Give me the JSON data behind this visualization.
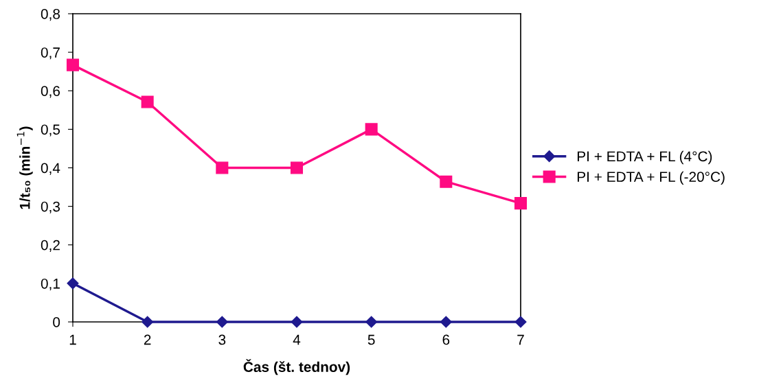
{
  "chart_data": {
    "type": "line",
    "xlabel": "Čas (št. tednov)",
    "ylabel": "1/t₅₀ (min$^{−1}$)",
    "x": [
      1,
      2,
      3,
      4,
      5,
      6,
      7
    ],
    "series": [
      {
        "name": "PI + EDTA + FL (4°C)",
        "color": "#1f1a8f",
        "marker": "diamond",
        "values": [
          0.1,
          0,
          0,
          0,
          0,
          0,
          0
        ]
      },
      {
        "name": "PI + EDTA + FL (-20°C)",
        "color": "#ff0a82",
        "marker": "square",
        "values": [
          0.667,
          0.571,
          0.4,
          0.4,
          0.5,
          0.364,
          0.308
        ]
      }
    ],
    "xlim": [
      1,
      7
    ],
    "xticks": [
      1,
      2,
      3,
      4,
      5,
      6,
      7
    ],
    "ylim": [
      0,
      0.8
    ],
    "yticks": [
      {
        "value": 0,
        "label": "0"
      },
      {
        "value": 0.1,
        "label": "0,1"
      },
      {
        "value": 0.2,
        "label": "0,2"
      },
      {
        "value": 0.3,
        "label": "0,3"
      },
      {
        "value": 0.4,
        "label": "0,4"
      },
      {
        "value": 0.5,
        "label": "0,5"
      },
      {
        "value": 0.6,
        "label": "0,6"
      },
      {
        "value": 0.7,
        "label": "0,7"
      },
      {
        "value": 0.8,
        "label": "0,8"
      }
    ],
    "grid": false,
    "legend": "right",
    "line_style": "solid"
  }
}
